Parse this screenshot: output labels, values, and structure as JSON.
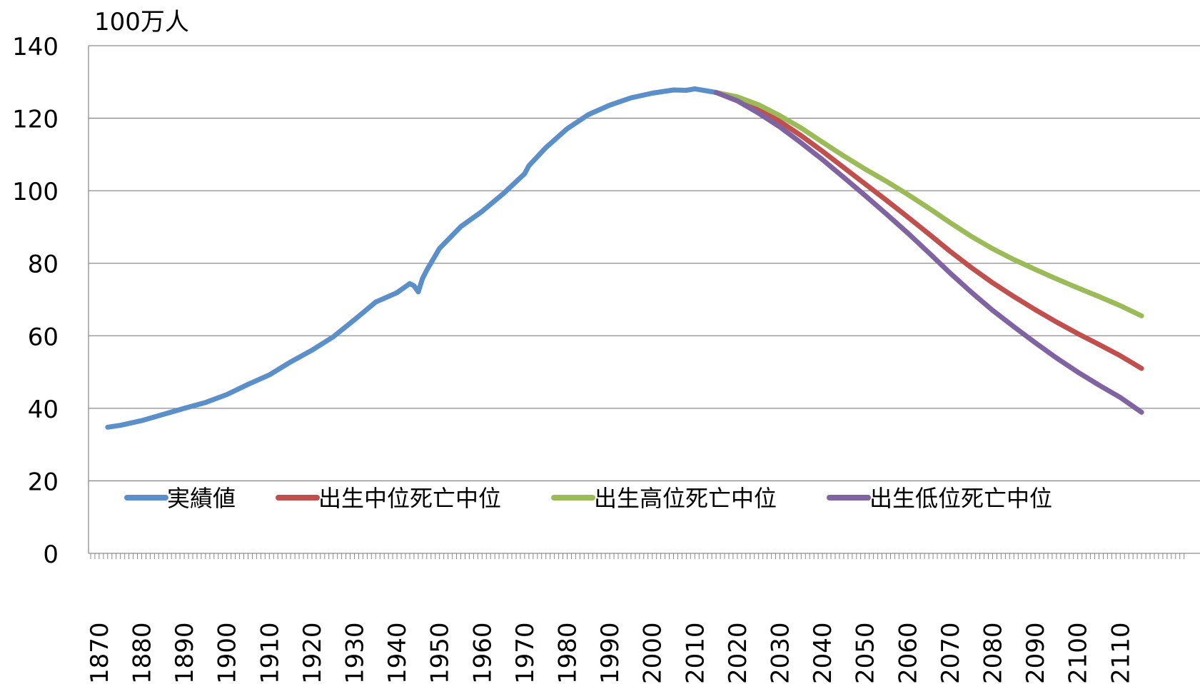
{
  "chart_data": {
    "type": "line",
    "title": "",
    "ylabel": "100万人",
    "xlabel": "",
    "ylim": [
      0,
      140
    ],
    "yticks": [
      0,
      20,
      40,
      60,
      80,
      100,
      120,
      140
    ],
    "xlim": [
      1870,
      2115
    ],
    "xticks": [
      "1870",
      "1880",
      "1890",
      "1900",
      "1910",
      "1920",
      "1930",
      "1940",
      "1950",
      "1960",
      "1970",
      "1980",
      "1990",
      "2000",
      "2010",
      "2020",
      "2030",
      "2040",
      "2050",
      "2060",
      "2070",
      "2080",
      "2090",
      "2100",
      "2110"
    ],
    "grid": true,
    "legend_position": "bottom-left inside plot",
    "series": [
      {
        "name": "実績値",
        "color": "#5B8FC9",
        "points": [
          [
            1872,
            34.8
          ],
          [
            1875,
            35.3
          ],
          [
            1880,
            36.6
          ],
          [
            1885,
            38.3
          ],
          [
            1890,
            40.0
          ],
          [
            1895,
            41.6
          ],
          [
            1900,
            43.8
          ],
          [
            1905,
            46.6
          ],
          [
            1910,
            49.2
          ],
          [
            1915,
            52.8
          ],
          [
            1920,
            56.0
          ],
          [
            1925,
            59.7
          ],
          [
            1930,
            64.4
          ],
          [
            1935,
            69.3
          ],
          [
            1940,
            71.9
          ],
          [
            1943,
            74.4
          ],
          [
            1944,
            73.8
          ],
          [
            1945,
            72.1
          ],
          [
            1946,
            75.8
          ],
          [
            1947,
            78.1
          ],
          [
            1950,
            84.1
          ],
          [
            1955,
            90.1
          ],
          [
            1960,
            94.3
          ],
          [
            1965,
            99.2
          ],
          [
            1970,
            104.7
          ],
          [
            1971,
            106.9
          ],
          [
            1975,
            111.9
          ],
          [
            1980,
            117.1
          ],
          [
            1985,
            121.0
          ],
          [
            1990,
            123.6
          ],
          [
            1995,
            125.6
          ],
          [
            2000,
            126.9
          ],
          [
            2005,
            127.8
          ],
          [
            2008,
            127.7
          ],
          [
            2010,
            128.1
          ],
          [
            2015,
            127.1
          ]
        ]
      },
      {
        "name": "出生中位死亡中位",
        "color": "#C0504D",
        "points": [
          [
            2015,
            127.1
          ],
          [
            2020,
            125.3
          ],
          [
            2025,
            122.5
          ],
          [
            2030,
            119.1
          ],
          [
            2035,
            115.2
          ],
          [
            2040,
            110.9
          ],
          [
            2045,
            106.4
          ],
          [
            2050,
            101.9
          ],
          [
            2055,
            97.4
          ],
          [
            2060,
            92.8
          ],
          [
            2065,
            88.1
          ],
          [
            2070,
            83.3
          ],
          [
            2075,
            78.8
          ],
          [
            2080,
            74.6
          ],
          [
            2085,
            70.8
          ],
          [
            2090,
            67.2
          ],
          [
            2095,
            63.8
          ],
          [
            2100,
            60.6
          ],
          [
            2105,
            57.6
          ],
          [
            2110,
            54.5
          ],
          [
            2115,
            51.0
          ]
        ]
      },
      {
        "name": "出生高位死亡中位",
        "color": "#9BBB59",
        "points": [
          [
            2015,
            127.1
          ],
          [
            2020,
            125.9
          ],
          [
            2025,
            123.7
          ],
          [
            2030,
            120.7
          ],
          [
            2035,
            117.3
          ],
          [
            2040,
            113.4
          ],
          [
            2045,
            109.6
          ],
          [
            2050,
            106.0
          ],
          [
            2055,
            102.6
          ],
          [
            2060,
            99.0
          ],
          [
            2065,
            95.2
          ],
          [
            2070,
            91.2
          ],
          [
            2075,
            87.4
          ],
          [
            2080,
            84.0
          ],
          [
            2085,
            81.0
          ],
          [
            2090,
            78.3
          ],
          [
            2095,
            75.7
          ],
          [
            2100,
            73.2
          ],
          [
            2105,
            70.8
          ],
          [
            2110,
            68.3
          ],
          [
            2115,
            65.5
          ]
        ]
      },
      {
        "name": "出生低位死亡中位",
        "color": "#8064A2",
        "points": [
          [
            2015,
            127.1
          ],
          [
            2020,
            124.8
          ],
          [
            2025,
            121.4
          ],
          [
            2030,
            117.6
          ],
          [
            2035,
            113.2
          ],
          [
            2040,
            108.6
          ],
          [
            2045,
            103.7
          ],
          [
            2050,
            98.7
          ],
          [
            2055,
            93.6
          ],
          [
            2060,
            88.4
          ],
          [
            2065,
            82.9
          ],
          [
            2070,
            77.3
          ],
          [
            2075,
            72.0
          ],
          [
            2080,
            67.0
          ],
          [
            2085,
            62.5
          ],
          [
            2090,
            58.1
          ],
          [
            2095,
            53.9
          ],
          [
            2100,
            50.0
          ],
          [
            2105,
            46.4
          ],
          [
            2110,
            43.0
          ],
          [
            2115,
            38.9
          ]
        ]
      }
    ]
  }
}
